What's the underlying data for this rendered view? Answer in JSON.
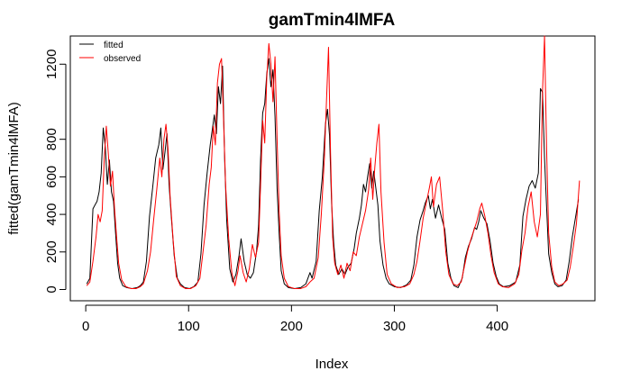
{
  "chart_data": {
    "type": "line",
    "title": "gamTmin4lMFA",
    "xlabel": "Index",
    "ylabel": "fitted(gamTmin4lMFA)",
    "xlim": [
      -15,
      495
    ],
    "ylim": [
      -60,
      1350
    ],
    "x_ticks": [
      0,
      100,
      200,
      300,
      400
    ],
    "y_ticks": [
      0,
      200,
      400,
      600,
      800,
      1200
    ],
    "grid": false,
    "legend_position": "top-left",
    "series": [
      {
        "name": "fitted",
        "color": "#000000",
        "points": [
          [
            1,
            30
          ],
          [
            4,
            60
          ],
          [
            7,
            430
          ],
          [
            9,
            450
          ],
          [
            11,
            470
          ],
          [
            13,
            520
          ],
          [
            15,
            620
          ],
          [
            17,
            860
          ],
          [
            19,
            760
          ],
          [
            21,
            560
          ],
          [
            23,
            690
          ],
          [
            25,
            520
          ],
          [
            27,
            470
          ],
          [
            29,
            300
          ],
          [
            31,
            140
          ],
          [
            33,
            60
          ],
          [
            36,
            20
          ],
          [
            40,
            10
          ],
          [
            45,
            5
          ],
          [
            50,
            10
          ],
          [
            53,
            20
          ],
          [
            56,
            40
          ],
          [
            59,
            150
          ],
          [
            62,
            390
          ],
          [
            65,
            540
          ],
          [
            68,
            700
          ],
          [
            71,
            770
          ],
          [
            73,
            860
          ],
          [
            75,
            640
          ],
          [
            77,
            730
          ],
          [
            79,
            830
          ],
          [
            81,
            560
          ],
          [
            83,
            400
          ],
          [
            86,
            180
          ],
          [
            89,
            60
          ],
          [
            92,
            30
          ],
          [
            96,
            10
          ],
          [
            101,
            5
          ],
          [
            105,
            15
          ],
          [
            109,
            40
          ],
          [
            112,
            190
          ],
          [
            115,
            450
          ],
          [
            118,
            620
          ],
          [
            121,
            770
          ],
          [
            123,
            850
          ],
          [
            125,
            930
          ],
          [
            127,
            830
          ],
          [
            129,
            1080
          ],
          [
            131,
            990
          ],
          [
            133,
            1190
          ],
          [
            135,
            700
          ],
          [
            137,
            370
          ],
          [
            140,
            110
          ],
          [
            143,
            40
          ],
          [
            146,
            80
          ],
          [
            149,
            180
          ],
          [
            151,
            270
          ],
          [
            154,
            150
          ],
          [
            157,
            80
          ],
          [
            160,
            60
          ],
          [
            163,
            90
          ],
          [
            166,
            200
          ],
          [
            168,
            340
          ],
          [
            170,
            700
          ],
          [
            172,
            940
          ],
          [
            174,
            990
          ],
          [
            176,
            1150
          ],
          [
            178,
            1230
          ],
          [
            180,
            1080
          ],
          [
            182,
            1170
          ],
          [
            184,
            920
          ],
          [
            186,
            540
          ],
          [
            188,
            300
          ],
          [
            190,
            100
          ],
          [
            193,
            30
          ],
          [
            197,
            10
          ],
          [
            203,
            5
          ],
          [
            209,
            10
          ],
          [
            214,
            30
          ],
          [
            218,
            90
          ],
          [
            220,
            60
          ],
          [
            224,
            150
          ],
          [
            227,
            420
          ],
          [
            230,
            600
          ],
          [
            233,
            880
          ],
          [
            235,
            960
          ],
          [
            237,
            820
          ],
          [
            239,
            460
          ],
          [
            241,
            250
          ],
          [
            243,
            130
          ],
          [
            246,
            80
          ],
          [
            249,
            110
          ],
          [
            252,
            80
          ],
          [
            255,
            120
          ],
          [
            258,
            140
          ],
          [
            261,
            220
          ],
          [
            263,
            300
          ],
          [
            266,
            380
          ],
          [
            268,
            450
          ],
          [
            270,
            560
          ],
          [
            272,
            520
          ],
          [
            274,
            600
          ],
          [
            276,
            670
          ],
          [
            278,
            540
          ],
          [
            280,
            630
          ],
          [
            282,
            540
          ],
          [
            284,
            450
          ],
          [
            286,
            260
          ],
          [
            289,
            130
          ],
          [
            292,
            60
          ],
          [
            295,
            30
          ],
          [
            300,
            15
          ],
          [
            306,
            10
          ],
          [
            312,
            25
          ],
          [
            316,
            50
          ],
          [
            319,
            130
          ],
          [
            322,
            280
          ],
          [
            325,
            370
          ],
          [
            328,
            420
          ],
          [
            330,
            460
          ],
          [
            333,
            500
          ],
          [
            335,
            430
          ],
          [
            337,
            480
          ],
          [
            340,
            380
          ],
          [
            343,
            450
          ],
          [
            346,
            380
          ],
          [
            349,
            320
          ],
          [
            352,
            140
          ],
          [
            355,
            60
          ],
          [
            358,
            20
          ],
          [
            362,
            10
          ],
          [
            366,
            60
          ],
          [
            369,
            170
          ],
          [
            372,
            230
          ],
          [
            375,
            270
          ],
          [
            378,
            330
          ],
          [
            380,
            320
          ],
          [
            382,
            360
          ],
          [
            384,
            420
          ],
          [
            387,
            380
          ],
          [
            390,
            350
          ],
          [
            393,
            260
          ],
          [
            396,
            140
          ],
          [
            399,
            70
          ],
          [
            402,
            30
          ],
          [
            406,
            15
          ],
          [
            412,
            20
          ],
          [
            418,
            40
          ],
          [
            422,
            130
          ],
          [
            425,
            390
          ],
          [
            428,
            480
          ],
          [
            431,
            550
          ],
          [
            434,
            580
          ],
          [
            437,
            540
          ],
          [
            440,
            620
          ],
          [
            442,
            1070
          ],
          [
            444,
            1050
          ],
          [
            446,
            700
          ],
          [
            448,
            440
          ],
          [
            450,
            190
          ],
          [
            453,
            90
          ],
          [
            456,
            30
          ],
          [
            459,
            15
          ],
          [
            463,
            20
          ],
          [
            467,
            50
          ],
          [
            470,
            150
          ],
          [
            473,
            280
          ],
          [
            476,
            380
          ],
          [
            479,
            480
          ]
        ]
      },
      {
        "name": "observed",
        "color": "#ff0000",
        "points": [
          [
            1,
            20
          ],
          [
            4,
            40
          ],
          [
            7,
            150
          ],
          [
            10,
            280
          ],
          [
            12,
            400
          ],
          [
            14,
            360
          ],
          [
            16,
            420
          ],
          [
            18,
            700
          ],
          [
            20,
            870
          ],
          [
            22,
            720
          ],
          [
            24,
            550
          ],
          [
            26,
            630
          ],
          [
            28,
            430
          ],
          [
            30,
            280
          ],
          [
            32,
            140
          ],
          [
            35,
            50
          ],
          [
            39,
            15
          ],
          [
            44,
            5
          ],
          [
            49,
            5
          ],
          [
            53,
            15
          ],
          [
            56,
            30
          ],
          [
            60,
            100
          ],
          [
            63,
            200
          ],
          [
            66,
            370
          ],
          [
            69,
            530
          ],
          [
            72,
            700
          ],
          [
            74,
            600
          ],
          [
            76,
            800
          ],
          [
            78,
            880
          ],
          [
            80,
            750
          ],
          [
            82,
            500
          ],
          [
            85,
            260
          ],
          [
            88,
            70
          ],
          [
            92,
            20
          ],
          [
            97,
            5
          ],
          [
            102,
            5
          ],
          [
            107,
            20
          ],
          [
            111,
            60
          ],
          [
            114,
            200
          ],
          [
            117,
            340
          ],
          [
            120,
            560
          ],
          [
            122,
            650
          ],
          [
            124,
            870
          ],
          [
            126,
            770
          ],
          [
            128,
            1100
          ],
          [
            130,
            1200
          ],
          [
            132,
            1230
          ],
          [
            134,
            900
          ],
          [
            136,
            550
          ],
          [
            139,
            270
          ],
          [
            142,
            90
          ],
          [
            145,
            20
          ],
          [
            148,
            100
          ],
          [
            150,
            180
          ],
          [
            153,
            90
          ],
          [
            156,
            40
          ],
          [
            159,
            110
          ],
          [
            162,
            240
          ],
          [
            165,
            170
          ],
          [
            168,
            250
          ],
          [
            170,
            560
          ],
          [
            172,
            900
          ],
          [
            174,
            780
          ],
          [
            176,
            1130
          ],
          [
            178,
            1310
          ],
          [
            180,
            1200
          ],
          [
            182,
            1000
          ],
          [
            184,
            1240
          ],
          [
            186,
            800
          ],
          [
            188,
            420
          ],
          [
            190,
            180
          ],
          [
            193,
            60
          ],
          [
            197,
            15
          ],
          [
            203,
            5
          ],
          [
            209,
            5
          ],
          [
            214,
            15
          ],
          [
            218,
            40
          ],
          [
            222,
            60
          ],
          [
            226,
            170
          ],
          [
            229,
            400
          ],
          [
            232,
            700
          ],
          [
            234,
            1000
          ],
          [
            236,
            1290
          ],
          [
            238,
            720
          ],
          [
            240,
            280
          ],
          [
            242,
            140
          ],
          [
            245,
            80
          ],
          [
            248,
            130
          ],
          [
            251,
            60
          ],
          [
            254,
            140
          ],
          [
            257,
            100
          ],
          [
            260,
            200
          ],
          [
            263,
            180
          ],
          [
            266,
            280
          ],
          [
            269,
            350
          ],
          [
            272,
            420
          ],
          [
            275,
            530
          ],
          [
            277,
            700
          ],
          [
            279,
            480
          ],
          [
            281,
            650
          ],
          [
            283,
            780
          ],
          [
            285,
            880
          ],
          [
            287,
            520
          ],
          [
            290,
            250
          ],
          [
            293,
            80
          ],
          [
            297,
            30
          ],
          [
            303,
            10
          ],
          [
            310,
            15
          ],
          [
            315,
            30
          ],
          [
            319,
            80
          ],
          [
            322,
            150
          ],
          [
            325,
            260
          ],
          [
            328,
            380
          ],
          [
            331,
            460
          ],
          [
            334,
            540
          ],
          [
            336,
            600
          ],
          [
            338,
            440
          ],
          [
            341,
            560
          ],
          [
            344,
            600
          ],
          [
            347,
            420
          ],
          [
            350,
            200
          ],
          [
            353,
            80
          ],
          [
            357,
            30
          ],
          [
            361,
            20
          ],
          [
            365,
            40
          ],
          [
            368,
            120
          ],
          [
            371,
            200
          ],
          [
            374,
            260
          ],
          [
            377,
            310
          ],
          [
            380,
            360
          ],
          [
            383,
            430
          ],
          [
            385,
            460
          ],
          [
            388,
            390
          ],
          [
            391,
            300
          ],
          [
            394,
            180
          ],
          [
            397,
            90
          ],
          [
            401,
            30
          ],
          [
            405,
            15
          ],
          [
            411,
            10
          ],
          [
            417,
            30
          ],
          [
            421,
            80
          ],
          [
            424,
            210
          ],
          [
            427,
            300
          ],
          [
            430,
            440
          ],
          [
            433,
            520
          ],
          [
            436,
            360
          ],
          [
            439,
            280
          ],
          [
            442,
            400
          ],
          [
            444,
            1050
          ],
          [
            446,
            1350
          ],
          [
            448,
            750
          ],
          [
            450,
            300
          ],
          [
            453,
            120
          ],
          [
            456,
            40
          ],
          [
            460,
            20
          ],
          [
            464,
            30
          ],
          [
            468,
            50
          ],
          [
            471,
            120
          ],
          [
            474,
            230
          ],
          [
            477,
            350
          ],
          [
            480,
            580
          ]
        ]
      }
    ]
  }
}
